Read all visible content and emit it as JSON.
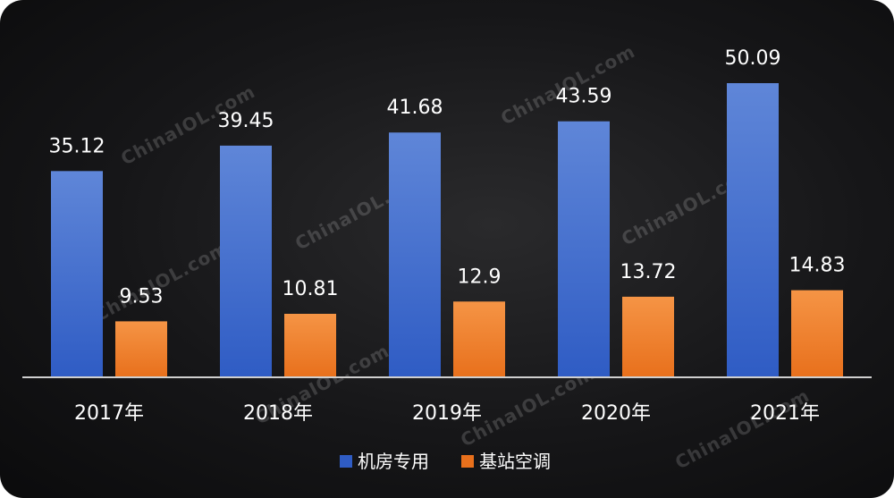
{
  "chart_data": {
    "type": "bar",
    "categories": [
      "2017年",
      "2018年",
      "2019年",
      "2020年",
      "2021年"
    ],
    "series": [
      {
        "name": "机房专用",
        "values": [
          35.12,
          39.45,
          41.68,
          43.59,
          50.09
        ]
      },
      {
        "name": "基站空调",
        "values": [
          9.53,
          10.81,
          12.9,
          13.72,
          14.83
        ]
      }
    ],
    "title": "",
    "xlabel": "",
    "ylabel": "",
    "ylim": [
      0,
      50.09
    ],
    "grid": false,
    "legend_position": "bottom-center"
  },
  "colors": {
    "series_0_top": "#5f86d8",
    "series_0_bottom": "#2f5cc4",
    "series_1_top": "#f59445",
    "series_1_bottom": "#e8701c",
    "background": "#161618"
  },
  "watermark": "ChinaIOL.com"
}
